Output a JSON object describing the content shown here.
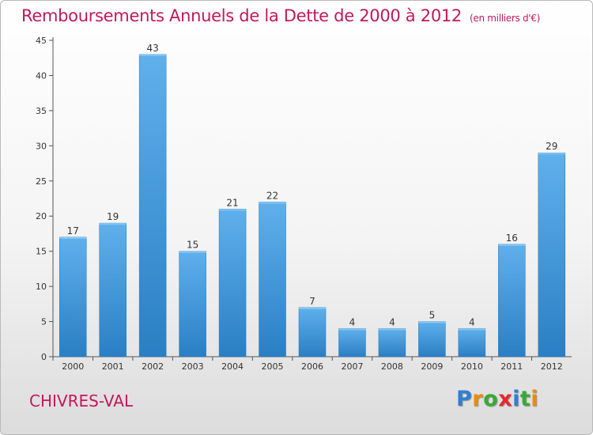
{
  "header": {
    "title": "Remboursements Annuels de la Dette de 2000 à 2012",
    "unit": "(en milliers d'€)"
  },
  "footer": {
    "city": "CHIVRES-VAL",
    "logo_letters": [
      "P",
      "r",
      "o",
      "x",
      "i",
      "t",
      "i"
    ],
    "logo_colors": [
      "#2f7fd1",
      "#f08a00",
      "#39a935",
      "#e8262a",
      "#2f7fd1",
      "#39a935",
      "#f08a00"
    ]
  },
  "colors": {
    "title": "#c2185b",
    "bar_light": "#5fb0ec",
    "bar_dark": "#2a7fc4",
    "axis": "#555555"
  },
  "chart_data": {
    "type": "bar",
    "title": "Remboursements Annuels de la Dette de 2000 à 2012",
    "subtitle": "(en milliers d'€)",
    "categories": [
      "2000",
      "2001",
      "2002",
      "2003",
      "2004",
      "2005",
      "2006",
      "2007",
      "2008",
      "2009",
      "2010",
      "2011",
      "2012"
    ],
    "values": [
      17,
      19,
      43,
      15,
      21,
      22,
      7,
      4,
      4,
      5,
      4,
      16,
      29
    ],
    "xlabel": "",
    "ylabel": "",
    "ylim": [
      0,
      45
    ],
    "yticks": [
      0,
      5,
      10,
      15,
      20,
      25,
      30,
      35,
      40,
      45
    ],
    "grid": false,
    "data_labels": true
  }
}
